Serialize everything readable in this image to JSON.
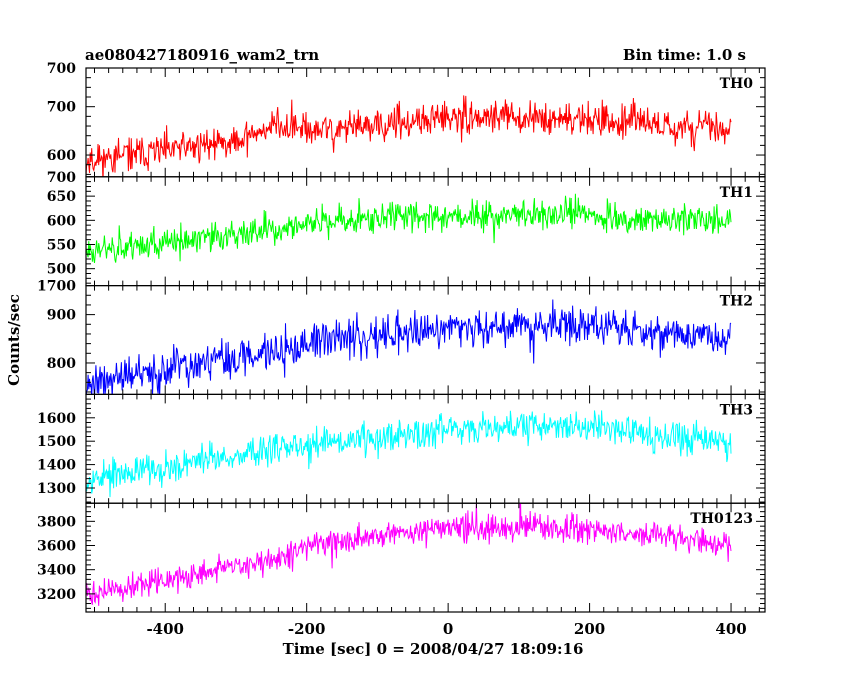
{
  "header": {
    "title": "ae080427180916_wam2_trn",
    "bin_time": "Bin time: 1.0 s"
  },
  "axes": {
    "ylabel": "Counts/sec",
    "xlabel": "Time [sec] 0 = 2008/04/27 18:09:16"
  },
  "chart_data": {
    "type": "line",
    "x_range": [
      -512,
      400
    ],
    "x_step": 1,
    "x_ticks": [
      -400,
      -200,
      0,
      200,
      400
    ],
    "grid": false,
    "panels": [
      {
        "name": "TH0",
        "color": "#ff0000",
        "ylim": [
          555,
          780
        ],
        "yticks": [
          600,
          700
        ],
        "top_label": "700",
        "trend": [
          [
            -512,
            588
          ],
          [
            -400,
            610
          ],
          [
            -300,
            630
          ],
          [
            -240,
            666
          ],
          [
            -200,
            648
          ],
          [
            -100,
            660
          ],
          [
            0,
            676
          ],
          [
            100,
            680
          ],
          [
            200,
            674
          ],
          [
            300,
            660
          ],
          [
            400,
            658
          ]
        ],
        "noise": 24,
        "seed": 11
      },
      {
        "name": "TH1",
        "color": "#00ff00",
        "ylim": [
          465,
          690
        ],
        "yticks": [
          500,
          550,
          600,
          650
        ],
        "top_label": "700",
        "trend": [
          [
            -512,
            540
          ],
          [
            -400,
            552
          ],
          [
            -300,
            568
          ],
          [
            -200,
            592
          ],
          [
            -100,
            606
          ],
          [
            0,
            612
          ],
          [
            100,
            614
          ],
          [
            200,
            610
          ],
          [
            300,
            602
          ],
          [
            400,
            598
          ]
        ],
        "noise": 22,
        "seed": 23
      },
      {
        "name": "TH2",
        "color": "#0000ff",
        "ylim": [
          735,
          960
        ],
        "yticks": [
          800,
          900
        ],
        "top_label": "1700",
        "trend": [
          [
            -512,
            760
          ],
          [
            -400,
            782
          ],
          [
            -300,
            810
          ],
          [
            -200,
            840
          ],
          [
            -100,
            858
          ],
          [
            0,
            872
          ],
          [
            100,
            880
          ],
          [
            200,
            878
          ],
          [
            300,
            862
          ],
          [
            400,
            850
          ]
        ],
        "noise": 28,
        "seed": 37
      },
      {
        "name": "TH3",
        "color": "#00ffff",
        "ylim": [
          1235,
          1700
        ],
        "yticks": [
          1300,
          1400,
          1500,
          1600
        ],
        "trend": [
          [
            -512,
            1340
          ],
          [
            -400,
            1390
          ],
          [
            -300,
            1440
          ],
          [
            -200,
            1480
          ],
          [
            -100,
            1520
          ],
          [
            0,
            1556
          ],
          [
            100,
            1570
          ],
          [
            200,
            1560
          ],
          [
            300,
            1530
          ],
          [
            400,
            1500
          ]
        ],
        "noise": 48,
        "seed": 53
      },
      {
        "name": "TH0123",
        "color": "#ff00ff",
        "ylim": [
          3050,
          3950
        ],
        "yticks": [
          3200,
          3400,
          3600,
          3800
        ],
        "trend": [
          [
            -512,
            3200
          ],
          [
            -400,
            3300
          ],
          [
            -300,
            3430
          ],
          [
            -200,
            3580
          ],
          [
            -100,
            3680
          ],
          [
            0,
            3740
          ],
          [
            100,
            3760
          ],
          [
            200,
            3740
          ],
          [
            300,
            3680
          ],
          [
            400,
            3600
          ]
        ],
        "noise": 75,
        "seed": 71
      }
    ]
  }
}
